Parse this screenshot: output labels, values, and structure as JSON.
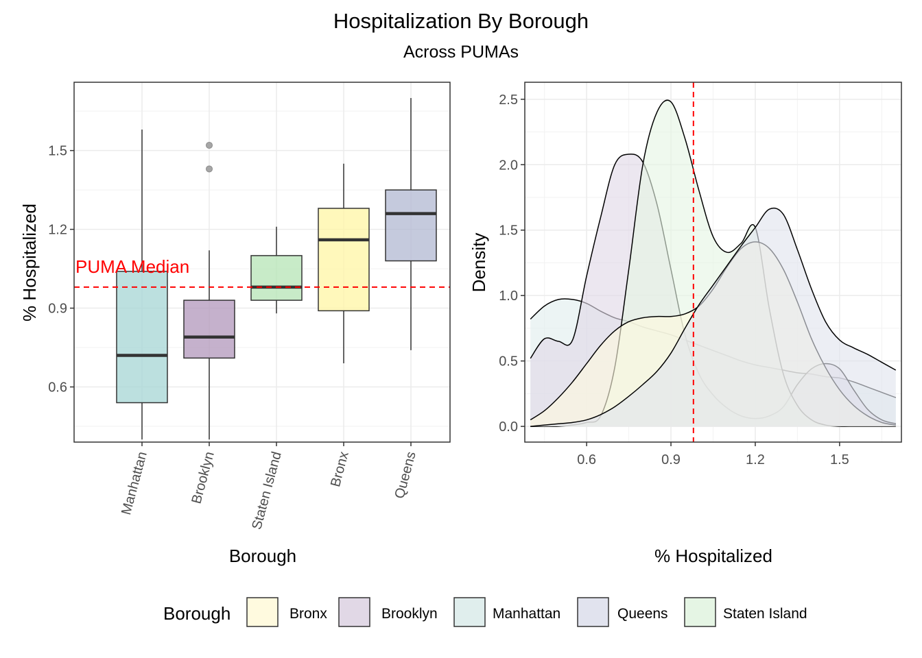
{
  "title": "Hospitalization By Borough",
  "subtitle": "Across PUMAs",
  "reference_line": {
    "label": "PUMA Median",
    "value": 0.98,
    "color": "#ff0000",
    "style": "dashed"
  },
  "chart_data": [
    {
      "type": "box",
      "xlabel": "Borough",
      "ylabel": "% Hospitalized",
      "ylim": [
        0.39,
        1.76
      ],
      "yticks": [
        "0.6",
        "0.9",
        "1.2",
        "1.5"
      ],
      "ytick_values": [
        0.6,
        0.9,
        1.2,
        1.5
      ],
      "grid": true,
      "categories": [
        "Manhattan",
        "Brooklyn",
        "Staten Island",
        "Bronx",
        "Queens"
      ],
      "boxes": [
        {
          "name": "Manhattan",
          "fill": "#a6d5d4",
          "min": 0.4,
          "q1": 0.54,
          "median": 0.72,
          "q3": 1.04,
          "max": 1.58,
          "outliers": []
        },
        {
          "name": "Brooklyn",
          "fill": "#b297bb",
          "min": 0.4,
          "q1": 0.71,
          "median": 0.79,
          "q3": 0.93,
          "max": 1.12,
          "outliers": [
            1.43,
            1.52
          ]
        },
        {
          "name": "Staten Island",
          "fill": "#b6e4b5",
          "min": 0.88,
          "q1": 0.93,
          "median": 0.98,
          "q3": 1.1,
          "max": 1.21,
          "outliers": []
        },
        {
          "name": "Bronx",
          "fill": "#fff5a4",
          "min": 0.69,
          "q1": 0.89,
          "median": 1.16,
          "q3": 1.28,
          "max": 1.45,
          "outliers": []
        },
        {
          "name": "Queens",
          "fill": "#b2b8d2",
          "min": 0.74,
          "q1": 1.08,
          "median": 1.26,
          "q3": 1.35,
          "max": 1.7,
          "outliers": []
        }
      ],
      "reference_label": "PUMA Median"
    },
    {
      "type": "area",
      "xlabel": "% Hospitalized",
      "ylabel": "Density",
      "xlim": [
        0.38,
        1.72
      ],
      "ylim": [
        -0.12,
        2.63
      ],
      "xticks": [
        "0.6",
        "0.9",
        "1.2",
        "1.5"
      ],
      "xtick_values": [
        0.6,
        0.9,
        1.2,
        1.5
      ],
      "yticks": [
        "0.0",
        "0.5",
        "1.0",
        "1.5",
        "2.0",
        "2.5"
      ],
      "ytick_values": [
        0.0,
        0.5,
        1.0,
        1.5,
        2.0,
        2.5
      ],
      "grid": true,
      "x": [
        0.4,
        0.45,
        0.5,
        0.55,
        0.6,
        0.65,
        0.7,
        0.75,
        0.8,
        0.85,
        0.9,
        0.95,
        1.0,
        1.05,
        1.1,
        1.15,
        1.2,
        1.25,
        1.3,
        1.35,
        1.4,
        1.45,
        1.5,
        1.55,
        1.6,
        1.65,
        1.7
      ],
      "series": [
        {
          "name": "Manhattan",
          "color": "#e0eeed",
          "values": [
            0.82,
            0.92,
            0.97,
            0.97,
            0.94,
            0.88,
            0.83,
            0.8,
            0.76,
            0.73,
            0.7,
            0.66,
            0.62,
            0.58,
            0.54,
            0.5,
            0.47,
            0.45,
            0.43,
            0.41,
            0.4,
            0.38,
            0.37,
            0.34,
            0.3,
            0.26,
            0.22
          ]
        },
        {
          "name": "Brooklyn",
          "color": "#e1d8e6",
          "values": [
            0.52,
            0.67,
            0.65,
            0.66,
            1.15,
            1.6,
            2.0,
            2.08,
            2.02,
            1.7,
            1.2,
            0.7,
            0.4,
            0.24,
            0.14,
            0.08,
            0.06,
            0.08,
            0.15,
            0.32,
            0.44,
            0.48,
            0.44,
            0.28,
            0.13,
            0.05,
            0.02
          ]
        },
        {
          "name": "Staten Island",
          "color": "#e5f5e4",
          "values": [
            0.0,
            0.0,
            0.0,
            0.01,
            0.03,
            0.08,
            0.45,
            1.2,
            2.0,
            2.4,
            2.48,
            2.2,
            1.8,
            1.45,
            1.33,
            1.4,
            1.52,
            0.9,
            0.4,
            0.16,
            0.05,
            0.01,
            0.0,
            0.0,
            0.0,
            0.0,
            0.0
          ]
        },
        {
          "name": "Bronx",
          "color": "#fffadf",
          "values": [
            0.05,
            0.12,
            0.22,
            0.34,
            0.48,
            0.62,
            0.73,
            0.8,
            0.83,
            0.84,
            0.84,
            0.86,
            0.92,
            1.05,
            1.22,
            1.36,
            1.41,
            1.36,
            1.2,
            0.95,
            0.67,
            0.45,
            0.28,
            0.16,
            0.08,
            0.03,
            0.01
          ]
        },
        {
          "name": "Queens",
          "color": "#e1e3ee",
          "values": [
            0.0,
            0.01,
            0.02,
            0.03,
            0.05,
            0.09,
            0.15,
            0.23,
            0.32,
            0.42,
            0.56,
            0.75,
            0.93,
            1.08,
            1.23,
            1.38,
            1.52,
            1.66,
            1.62,
            1.35,
            1.05,
            0.8,
            0.66,
            0.6,
            0.55,
            0.49,
            0.43
          ]
        }
      ],
      "vline": 0.98
    }
  ],
  "legend": {
    "title": "Borough",
    "placement": "bottom",
    "items": [
      {
        "label": "Bronx",
        "color": "#fffadf"
      },
      {
        "label": "Brooklyn",
        "color": "#e1d8e6"
      },
      {
        "label": "Manhattan",
        "color": "#e0eeed"
      },
      {
        "label": "Queens",
        "color": "#e1e3ee"
      },
      {
        "label": "Staten Island",
        "color": "#e5f5e4"
      }
    ]
  }
}
